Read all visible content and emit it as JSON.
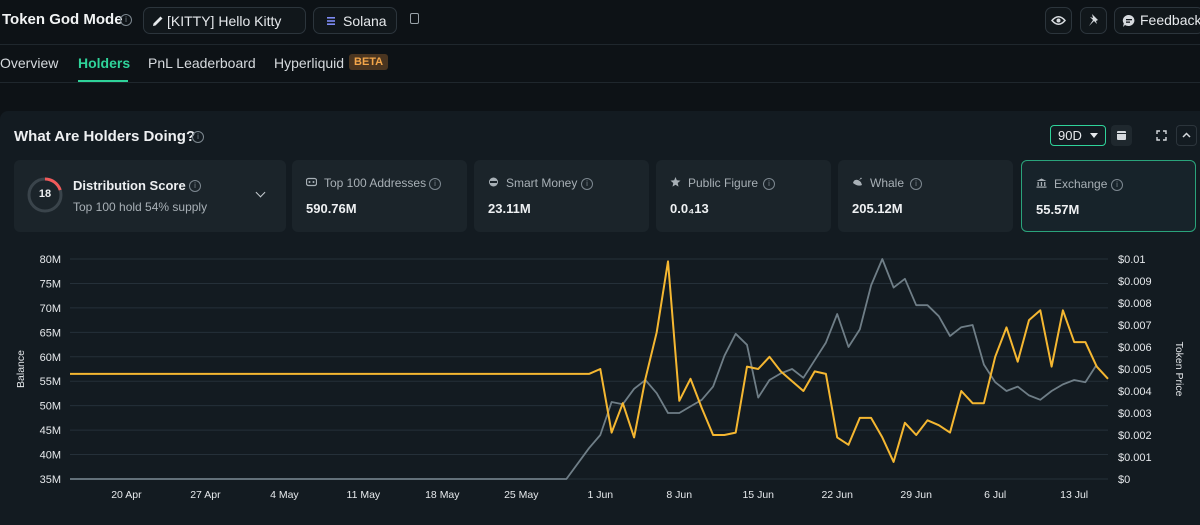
{
  "header": {
    "app_title": "Token God Mode",
    "token_label": "[KITTY] Hello Kitty",
    "chain_label": "Solana",
    "feedback_label": "Feedback"
  },
  "tabs": [
    {
      "label": "Overview"
    },
    {
      "label": "Holders"
    },
    {
      "label": "PnL Leaderboard"
    },
    {
      "label": "Hyperliquid"
    }
  ],
  "beta_badge": "BETA",
  "panel": {
    "title": "What Are Holders Doing?",
    "range": "90D"
  },
  "distribution": {
    "score": "18",
    "title": "Distribution Score",
    "subtitle": "Top 100 hold 54% supply"
  },
  "stats": [
    {
      "label": "Top 100 Addresses",
      "value": "590.76M",
      "icon": "top-100-icon"
    },
    {
      "label": "Smart Money",
      "value": "23.11M",
      "icon": "smart-money-icon"
    },
    {
      "label": "Public Figure",
      "value": "0.0₄13",
      "icon": "public-figure-icon"
    },
    {
      "label": "Whale",
      "value": "205.12M",
      "icon": "whale-icon"
    },
    {
      "label": "Exchange",
      "value": "55.57M",
      "icon": "exchange-icon"
    }
  ],
  "colors": {
    "accent": "#2fd39a",
    "balance_line": "#f5b731",
    "price_line": "#6f7e87"
  },
  "chart_data": {
    "type": "line",
    "xlabel": "",
    "ylabel": "Balance",
    "y2label": "Token Price",
    "ylim": [
      35,
      80
    ],
    "y2lim": [
      0,
      0.01
    ],
    "yticks": [
      "35M",
      "40M",
      "45M",
      "50M",
      "55M",
      "60M",
      "65M",
      "70M",
      "75M",
      "80M"
    ],
    "y2ticks": [
      "$0",
      "$0.001",
      "$0.002",
      "$0.003",
      "$0.004",
      "$0.005",
      "$0.006",
      "$0.007",
      "$0.008",
      "$0.009",
      "$0.01"
    ],
    "xticks": [
      "20 Apr",
      "27 Apr",
      "4 May",
      "11 May",
      "18 May",
      "25 May",
      "1 Jun",
      "8 Jun",
      "15 Jun",
      "22 Jun",
      "29 Jun",
      "6 Jul",
      "13 Jul"
    ],
    "grid": true,
    "series": [
      {
        "axis": "left",
        "points": [
          [
            "2025-04-15",
            56.5
          ],
          [
            "2025-05-31",
            56.5
          ],
          [
            "2025-06-01",
            57.5
          ],
          [
            "2025-06-02",
            44.5
          ],
          [
            "2025-06-03",
            50.5
          ],
          [
            "2025-06-04",
            43.5
          ],
          [
            "2025-06-05",
            55.5
          ],
          [
            "2025-06-06",
            65.0
          ],
          [
            "2025-06-07",
            79.5
          ],
          [
            "2025-06-08",
            51.0
          ],
          [
            "2025-06-09",
            55.5
          ],
          [
            "2025-06-10",
            49.5
          ],
          [
            "2025-06-11",
            44.0
          ],
          [
            "2025-06-12",
            44.0
          ],
          [
            "2025-06-13",
            44.5
          ],
          [
            "2025-06-14",
            58.0
          ],
          [
            "2025-06-15",
            57.5
          ],
          [
            "2025-06-16",
            60.0
          ],
          [
            "2025-06-17",
            57.0
          ],
          [
            "2025-06-18",
            55.0
          ],
          [
            "2025-06-19",
            53.0
          ],
          [
            "2025-06-20",
            57.0
          ],
          [
            "2025-06-21",
            56.5
          ],
          [
            "2025-06-22",
            43.5
          ],
          [
            "2025-06-23",
            42.0
          ],
          [
            "2025-06-24",
            47.5
          ],
          [
            "2025-06-25",
            47.5
          ],
          [
            "2025-06-26",
            43.5
          ],
          [
            "2025-06-27",
            38.5
          ],
          [
            "2025-06-28",
            46.5
          ],
          [
            "2025-06-29",
            44.0
          ],
          [
            "2025-06-30",
            47.0
          ],
          [
            "2025-07-01",
            46.0
          ],
          [
            "2025-07-02",
            44.5
          ],
          [
            "2025-07-03",
            53.0
          ],
          [
            "2025-07-04",
            50.5
          ],
          [
            "2025-07-05",
            50.5
          ],
          [
            "2025-07-06",
            60.0
          ],
          [
            "2025-07-07",
            66.0
          ],
          [
            "2025-07-08",
            59.0
          ],
          [
            "2025-07-09",
            67.5
          ],
          [
            "2025-07-10",
            69.5
          ],
          [
            "2025-07-11",
            58.0
          ],
          [
            "2025-07-12",
            69.5
          ],
          [
            "2025-07-13",
            63.0
          ],
          [
            "2025-07-14",
            63.0
          ],
          [
            "2025-07-15",
            58.0
          ],
          [
            "2025-07-16",
            55.5
          ]
        ]
      },
      {
        "axis": "right",
        "points": [
          [
            "2025-04-15",
            0
          ],
          [
            "2025-05-29",
            0
          ],
          [
            "2025-05-31",
            0.0014
          ],
          [
            "2025-06-01",
            0.002
          ],
          [
            "2025-06-02",
            0.0035
          ],
          [
            "2025-06-03",
            0.0034
          ],
          [
            "2025-06-04",
            0.0041
          ],
          [
            "2025-06-05",
            0.0045
          ],
          [
            "2025-06-06",
            0.0039
          ],
          [
            "2025-06-07",
            0.003
          ],
          [
            "2025-06-08",
            0.003
          ],
          [
            "2025-06-09",
            0.0033
          ],
          [
            "2025-06-10",
            0.0036
          ],
          [
            "2025-06-11",
            0.0042
          ],
          [
            "2025-06-12",
            0.0056
          ],
          [
            "2025-06-13",
            0.0066
          ],
          [
            "2025-06-14",
            0.0061
          ],
          [
            "2025-06-15",
            0.0037
          ],
          [
            "2025-06-16",
            0.0045
          ],
          [
            "2025-06-17",
            0.0048
          ],
          [
            "2025-06-18",
            0.005
          ],
          [
            "2025-06-19",
            0.0046
          ],
          [
            "2025-06-20",
            0.0054
          ],
          [
            "2025-06-21",
            0.0062
          ],
          [
            "2025-06-22",
            0.0075
          ],
          [
            "2025-06-23",
            0.006
          ],
          [
            "2025-06-24",
            0.0068
          ],
          [
            "2025-06-25",
            0.0088
          ],
          [
            "2025-06-26",
            0.01
          ],
          [
            "2025-06-27",
            0.0087
          ],
          [
            "2025-06-28",
            0.0091
          ],
          [
            "2025-06-29",
            0.0079
          ],
          [
            "2025-06-30",
            0.0079
          ],
          [
            "2025-07-01",
            0.0074
          ],
          [
            "2025-07-02",
            0.0065
          ],
          [
            "2025-07-03",
            0.0069
          ],
          [
            "2025-07-04",
            0.007
          ],
          [
            "2025-07-05",
            0.0052
          ],
          [
            "2025-07-06",
            0.0044
          ],
          [
            "2025-07-07",
            0.004
          ],
          [
            "2025-07-08",
            0.0042
          ],
          [
            "2025-07-09",
            0.0038
          ],
          [
            "2025-07-10",
            0.0036
          ],
          [
            "2025-07-11",
            0.004
          ],
          [
            "2025-07-12",
            0.0043
          ],
          [
            "2025-07-13",
            0.0045
          ],
          [
            "2025-07-14",
            0.0044
          ],
          [
            "2025-07-15",
            0.0052
          ]
        ]
      }
    ]
  }
}
